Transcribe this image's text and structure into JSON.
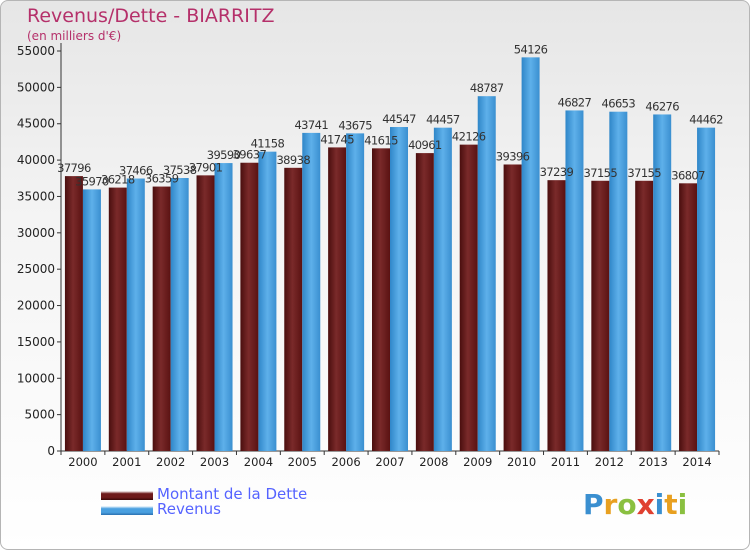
{
  "header": {
    "title": "Revenus/Dette - BIARRITZ",
    "subtitle": "(en milliers d'€)"
  },
  "legend": {
    "items": [
      {
        "label": "Montant de la Dette",
        "color": "#6e1a1a"
      },
      {
        "label": "Revenus",
        "color": "#4aa0e0"
      }
    ]
  },
  "logo": {
    "text": "Proxiti",
    "letters": [
      {
        "ch": "P",
        "color": "#3a8fd0"
      },
      {
        "ch": "r",
        "color": "#e8a020"
      },
      {
        "ch": "o",
        "color": "#8ac040"
      },
      {
        "ch": "x",
        "color": "#e04030"
      },
      {
        "ch": "i",
        "color": "#3a8fd0"
      },
      {
        "ch": "t",
        "color": "#e8a020"
      },
      {
        "ch": "i",
        "color": "#8ac040"
      }
    ]
  },
  "chart_data": {
    "type": "bar",
    "title": "Revenus/Dette - BIARRITZ",
    "subtitle": "(en milliers d'€)",
    "categories": [
      "2000",
      "2001",
      "2002",
      "2003",
      "2004",
      "2005",
      "2006",
      "2007",
      "2008",
      "2009",
      "2010",
      "2011",
      "2012",
      "2013",
      "2014"
    ],
    "series": [
      {
        "name": "Montant de la Dette",
        "color": "#6e1a1a",
        "values": [
          37796,
          36218,
          36359,
          37901,
          39637,
          38938,
          41745,
          41615,
          40961,
          42126,
          39396,
          37239,
          37155,
          37155,
          36807
        ],
        "labels": [
          "37796",
          "36218",
          "36359",
          "37901",
          "39637",
          "38938",
          "41745",
          "41615",
          "40961",
          "42126",
          "39396",
          "37239",
          "37155",
          "37155",
          "36807"
        ]
      },
      {
        "name": "Revenus",
        "color": "#4aa0e0",
        "values": [
          35970,
          37466,
          37538,
          39590,
          41158,
          43741,
          43675,
          44547,
          44457,
          48787,
          54126,
          46827,
          46653,
          46276,
          44462
        ],
        "labels": [
          "35970",
          "37466",
          "37538",
          "39590",
          "41158",
          "43741",
          "43675",
          "44547",
          "44457",
          "48787",
          "54126",
          "46827",
          "46653",
          "46276",
          "44462"
        ]
      }
    ],
    "yticks": [
      "0",
      "5000",
      "10000",
      "15000",
      "20000",
      "25000",
      "30000",
      "35000",
      "40000",
      "45000",
      "50000",
      "55000"
    ],
    "ylim": [
      0,
      55000
    ],
    "grid": false,
    "legend_position": "bottom-left"
  }
}
